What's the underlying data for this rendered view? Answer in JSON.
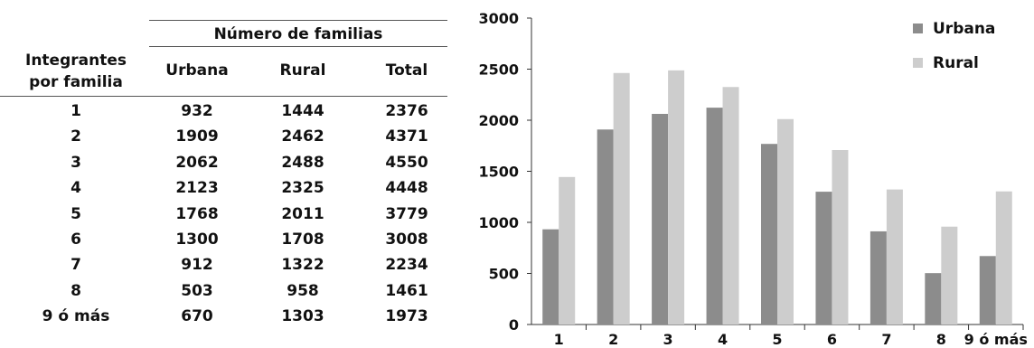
{
  "table": {
    "group_header": "Número de familias",
    "row_header_line1": "Integrantes",
    "row_header_line2": "por familia",
    "columns": [
      "Urbana",
      "Rural",
      "Total"
    ],
    "rows": [
      {
        "label": "1",
        "urbana": "932",
        "rural": "1444",
        "total": "2376"
      },
      {
        "label": "2",
        "urbana": "1909",
        "rural": "2462",
        "total": "4371"
      },
      {
        "label": "3",
        "urbana": "2062",
        "rural": "2488",
        "total": "4550"
      },
      {
        "label": "4",
        "urbana": "2123",
        "rural": "2325",
        "total": "4448"
      },
      {
        "label": "5",
        "urbana": "1768",
        "rural": "2011",
        "total": "3779"
      },
      {
        "label": "6",
        "urbana": "1300",
        "rural": "1708",
        "total": "3008"
      },
      {
        "label": "7",
        "urbana": "912",
        "rural": "1322",
        "total": "2234"
      },
      {
        "label": "8",
        "urbana": "503",
        "rural": "958",
        "total": "1461"
      },
      {
        "label": "9 ó más",
        "urbana": "670",
        "rural": "1303",
        "total": "1973"
      }
    ]
  },
  "chart_data": {
    "type": "bar",
    "categories": [
      "1",
      "2",
      "3",
      "4",
      "5",
      "6",
      "7",
      "8",
      "9 ó más"
    ],
    "series": [
      {
        "name": "Urbana",
        "color": "#8c8c8c",
        "values": [
          932,
          1909,
          2062,
          2123,
          1768,
          1300,
          912,
          503,
          670
        ]
      },
      {
        "name": "Rural",
        "color": "#cdcdcd",
        "values": [
          1444,
          2462,
          2488,
          2325,
          2011,
          1708,
          1322,
          958,
          1303
        ]
      }
    ],
    "ylim": [
      0,
      3000
    ],
    "yticks": [
      "0",
      "500",
      "1000",
      "1500",
      "2000",
      "2500",
      "3000"
    ],
    "legend_position": "top-right",
    "grid": false
  }
}
